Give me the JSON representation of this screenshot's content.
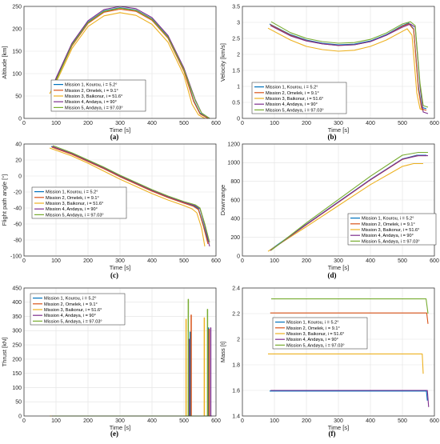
{
  "legend": [
    "Mission 1, Kourou, i = 5.2°",
    "Mission 2, Omelek, i = 9.1°",
    "Mission 3, Baikonur, i = 51.6°",
    "Mission 4, Andøya, i = 90°",
    "Mission 5, Andøya, i = 97.03°"
  ],
  "colors": [
    "#0072bd",
    "#d95319",
    "#edb120",
    "#7e2f8e",
    "#77ac30"
  ],
  "chart_data": [
    {
      "type": "line",
      "label": "(a)",
      "xlabel": "Time [s]",
      "ylabel": "Altitude [km]",
      "xlim": [
        0,
        600
      ],
      "ylim": [
        0,
        250
      ],
      "xticks": [
        0,
        100,
        200,
        300,
        400,
        500,
        600
      ],
      "yticks": [
        0,
        50,
        100,
        150,
        200,
        250
      ],
      "legend_position": "center-left",
      "series": [
        {
          "name": "Mission 1, Kourou, i = 5.2°",
          "x": [
            85,
            100,
            150,
            200,
            250,
            300,
            350,
            400,
            450,
            500,
            530,
            550,
            575
          ],
          "y": [
            62,
            88,
            165,
            215,
            240,
            247,
            242,
            222,
            182,
            108,
            40,
            12,
            0
          ]
        },
        {
          "name": "Mission 2, Omelek, i = 9.1°",
          "x": [
            87,
            100,
            150,
            200,
            250,
            300,
            350,
            400,
            450,
            500,
            530,
            550,
            575
          ],
          "y": [
            60,
            85,
            162,
            212,
            237,
            244,
            239,
            219,
            179,
            105,
            38,
            10,
            0
          ]
        },
        {
          "name": "Mission 3, Baikonur, i = 51.6°",
          "x": [
            80,
            100,
            150,
            200,
            250,
            300,
            350,
            400,
            450,
            500,
            525,
            545,
            565
          ],
          "y": [
            55,
            80,
            156,
            205,
            229,
            236,
            230,
            210,
            170,
            96,
            32,
            8,
            0
          ]
        },
        {
          "name": "Mission 4, Andøya, i = 90°",
          "x": [
            88,
            100,
            150,
            200,
            250,
            300,
            350,
            400,
            450,
            500,
            535,
            555,
            580
          ],
          "y": [
            63,
            90,
            168,
            218,
            243,
            250,
            245,
            225,
            185,
            112,
            42,
            12,
            0
          ]
        },
        {
          "name": "Mission 5, Andøya, i = 97.03°",
          "x": [
            90,
            100,
            150,
            200,
            250,
            300,
            350,
            400,
            450,
            500,
            535,
            555,
            580
          ],
          "y": [
            58,
            84,
            164,
            214,
            239,
            246,
            241,
            221,
            181,
            108,
            40,
            12,
            0
          ]
        }
      ]
    },
    {
      "type": "line",
      "label": "(b)",
      "xlabel": "Time [s]",
      "ylabel": "Velocity [km/s]",
      "xlim": [
        0,
        600
      ],
      "ylim": [
        0,
        3.5
      ],
      "xticks": [
        0,
        100,
        200,
        300,
        400,
        500,
        600
      ],
      "yticks": [
        0,
        0.5,
        1,
        1.5,
        2,
        2.5,
        3,
        3.5
      ],
      "legend_position": "bottom-left",
      "series": [
        {
          "name": "Mission 1, Kourou, i = 5.2°",
          "x": [
            85,
            150,
            200,
            250,
            300,
            350,
            400,
            450,
            500,
            520,
            535,
            550,
            560,
            575
          ],
          "y": [
            2.95,
            2.62,
            2.45,
            2.35,
            2.3,
            2.32,
            2.42,
            2.62,
            2.9,
            2.98,
            2.8,
            1.0,
            0.35,
            0.3
          ]
        },
        {
          "name": "Mission 2, Omelek, i = 9.1°",
          "x": [
            87,
            150,
            200,
            250,
            300,
            350,
            400,
            450,
            500,
            520,
            535,
            550,
            560,
            575
          ],
          "y": [
            2.93,
            2.6,
            2.43,
            2.33,
            2.28,
            2.3,
            2.4,
            2.6,
            2.88,
            2.96,
            2.78,
            0.9,
            0.3,
            0.25
          ]
        },
        {
          "name": "Mission 3, Baikonur, i = 51.6°",
          "x": [
            80,
            150,
            200,
            250,
            300,
            350,
            400,
            450,
            500,
            515,
            530,
            545,
            555,
            565
          ],
          "y": [
            2.82,
            2.45,
            2.25,
            2.15,
            2.1,
            2.13,
            2.25,
            2.45,
            2.72,
            2.8,
            2.6,
            0.8,
            0.3,
            0.25
          ]
        },
        {
          "name": "Mission 4, Andøya, i = 90°",
          "x": [
            88,
            150,
            200,
            250,
            300,
            350,
            400,
            450,
            500,
            525,
            540,
            555,
            565,
            580
          ],
          "y": [
            2.9,
            2.58,
            2.42,
            2.33,
            2.28,
            2.3,
            2.4,
            2.6,
            2.85,
            2.95,
            2.85,
            1.0,
            0.2,
            0.15
          ]
        },
        {
          "name": "Mission 5, Andøya, i = 97.03°",
          "x": [
            90,
            150,
            200,
            250,
            300,
            350,
            400,
            450,
            500,
            525,
            540,
            555,
            565,
            580
          ],
          "y": [
            3.02,
            2.68,
            2.5,
            2.4,
            2.35,
            2.37,
            2.47,
            2.67,
            2.95,
            3.02,
            2.9,
            1.1,
            0.4,
            0.35
          ]
        }
      ]
    },
    {
      "type": "line",
      "label": "(c)",
      "xlabel": "Time [s]",
      "ylabel": "Flight path angle [°]",
      "xlim": [
        0,
        600
      ],
      "ylim": [
        -100,
        40
      ],
      "xticks": [
        0,
        100,
        200,
        300,
        400,
        500,
        600
      ],
      "yticks": [
        -100,
        -80,
        -60,
        -40,
        -20,
        0,
        20,
        40
      ],
      "legend_position": "center-left",
      "series": [
        {
          "name": "Mission 1, Kourou, i = 5.2°",
          "x": [
            85,
            150,
            200,
            250,
            300,
            350,
            400,
            450,
            500,
            530,
            545,
            560,
            575
          ],
          "y": [
            37,
            28,
            19,
            10,
            0,
            -9,
            -18,
            -26,
            -33,
            -37,
            -41,
            -60,
            -82
          ]
        },
        {
          "name": "Mission 2, Omelek, i = 9.1°",
          "x": [
            87,
            150,
            200,
            250,
            300,
            350,
            400,
            450,
            500,
            530,
            545,
            560,
            575
          ],
          "y": [
            36,
            27,
            18,
            9,
            -1,
            -10,
            -19,
            -27,
            -34,
            -38,
            -42,
            -62,
            -85
          ]
        },
        {
          "name": "Mission 3, Baikonur, i = 51.6°",
          "x": [
            80,
            150,
            200,
            250,
            300,
            350,
            400,
            450,
            500,
            525,
            540,
            555,
            565
          ],
          "y": [
            35,
            25,
            16,
            6,
            -4,
            -13,
            -22,
            -30,
            -37,
            -41,
            -46,
            -65,
            -88
          ]
        },
        {
          "name": "Mission 4, Andøya, i = 90°",
          "x": [
            88,
            150,
            200,
            250,
            300,
            350,
            400,
            450,
            500,
            535,
            550,
            565,
            580
          ],
          "y": [
            37,
            28,
            19,
            10,
            0,
            -9,
            -18,
            -26,
            -33,
            -37,
            -41,
            -62,
            -88
          ]
        },
        {
          "name": "Mission 5, Andøya, i = 97.03°",
          "x": [
            90,
            150,
            200,
            250,
            300,
            350,
            400,
            450,
            500,
            535,
            550,
            565,
            580
          ],
          "y": [
            38,
            29,
            20,
            11,
            1,
            -8,
            -17,
            -25,
            -32,
            -36,
            -40,
            -60,
            -83
          ]
        }
      ]
    },
    {
      "type": "line",
      "label": "(d)",
      "xlabel": "Time [s]",
      "ylabel": "Downrange",
      "xlim": [
        0,
        600
      ],
      "ylim": [
        0,
        1200
      ],
      "xticks": [
        0,
        100,
        200,
        300,
        400,
        500,
        600
      ],
      "yticks": [
        0,
        200,
        400,
        600,
        800,
        1000,
        1200
      ],
      "legend_position": "bottom-right",
      "series": [
        {
          "name": "Mission 1, Kourou, i = 5.2°",
          "x": [
            85,
            200,
            300,
            400,
            500,
            545,
            575
          ],
          "y": [
            60,
            340,
            580,
            820,
            1040,
            1080,
            1080
          ]
        },
        {
          "name": "Mission 2, Omelek, i = 9.1°",
          "x": [
            87,
            200,
            300,
            400,
            500,
            545,
            575
          ],
          "y": [
            58,
            335,
            575,
            815,
            1035,
            1075,
            1075
          ]
        },
        {
          "name": "Mission 3, Baikonur, i = 51.6°",
          "x": [
            80,
            200,
            300,
            400,
            500,
            535,
            565
          ],
          "y": [
            50,
            315,
            540,
            765,
            960,
            990,
            990
          ]
        },
        {
          "name": "Mission 4, Andøya, i = 90°",
          "x": [
            88,
            200,
            300,
            400,
            500,
            550,
            580
          ],
          "y": [
            60,
            338,
            578,
            818,
            1038,
            1075,
            1075
          ]
        },
        {
          "name": "Mission 5, Andøya, i = 97.03°",
          "x": [
            90,
            200,
            300,
            400,
            500,
            550,
            580
          ],
          "y": [
            62,
            355,
            605,
            855,
            1080,
            1110,
            1110
          ]
        }
      ]
    },
    {
      "type": "line",
      "label": "(e)",
      "xlabel": "Time [s]",
      "ylabel": "Thrust [kN]",
      "xlim": [
        0,
        600
      ],
      "ylim": [
        0,
        450
      ],
      "xticks": [
        0,
        100,
        200,
        300,
        400,
        500,
        600
      ],
      "yticks": [
        0,
        50,
        100,
        150,
        200,
        250,
        300,
        350,
        400,
        450
      ],
      "legend_position": "top-left",
      "series": [
        {
          "name": "Mission 1, Kourou, i = 5.2°",
          "x": [
            85,
            519,
            519,
            520,
            520,
            576,
            576,
            577,
            577,
            585
          ],
          "y": [
            0,
            0,
            295,
            295,
            0,
            0,
            310,
            310,
            0,
            0
          ]
        },
        {
          "name": "Mission 2, Omelek, i = 9.1°",
          "x": [
            87,
            522,
            522,
            523,
            523,
            578,
            578,
            579,
            579,
            585
          ],
          "y": [
            0,
            0,
            355,
            355,
            0,
            0,
            305,
            305,
            0,
            0
          ]
        },
        {
          "name": "Mission 3, Baikonur, i = 51.6°",
          "x": [
            80,
            506,
            506,
            507,
            507,
            563,
            563,
            564,
            564,
            570
          ],
          "y": [
            0,
            0,
            340,
            340,
            0,
            0,
            345,
            345,
            0,
            0
          ]
        },
        {
          "name": "Mission 4, Andøya, i = 90°",
          "x": [
            88,
            516,
            516,
            517,
            517,
            583,
            583,
            584,
            584,
            588
          ],
          "y": [
            0,
            0,
            270,
            270,
            0,
            0,
            310,
            310,
            0,
            0
          ]
        },
        {
          "name": "Mission 5, Andøya, i = 97.03°",
          "x": [
            90,
            513,
            513,
            514,
            514,
            573,
            573,
            574,
            574,
            580
          ],
          "y": [
            0,
            0,
            410,
            410,
            0,
            0,
            375,
            375,
            0,
            0
          ]
        }
      ]
    },
    {
      "type": "line",
      "label": "(f)",
      "xlabel": "Time [s]",
      "ylabel": "Mass [t]",
      "xlim": [
        0,
        600
      ],
      "ylim": [
        1.4,
        2.4
      ],
      "xticks": [
        0,
        100,
        200,
        300,
        400,
        500,
        600
      ],
      "yticks": [
        1.4,
        1.6,
        1.8,
        2.0,
        2.2,
        2.4
      ],
      "yticklabels": [
        "1.4",
        "1.6",
        "1.8",
        "2",
        "2.2",
        "2.4"
      ],
      "legend_position": "center-left",
      "series": [
        {
          "name": "Mission 1, Kourou, i = 5.2°",
          "x": [
            85,
            575,
            578
          ],
          "y": [
            1.595,
            1.595,
            1.52
          ]
        },
        {
          "name": "Mission 2, Omelek, i = 9.1°",
          "x": [
            87,
            576,
            580
          ],
          "y": [
            2.205,
            2.205,
            2.12
          ]
        },
        {
          "name": "Mission 3, Baikonur, i = 51.6°",
          "x": [
            80,
            562,
            565
          ],
          "y": [
            1.885,
            1.885,
            1.73
          ]
        },
        {
          "name": "Mission 4, Andøya, i = 90°",
          "x": [
            88,
            578,
            582
          ],
          "y": [
            1.6,
            1.6,
            1.47
          ]
        },
        {
          "name": "Mission 5, Andøya, i = 97.03°",
          "x": [
            90,
            574,
            580
          ],
          "y": [
            2.315,
            2.315,
            2.2
          ]
        }
      ]
    }
  ]
}
